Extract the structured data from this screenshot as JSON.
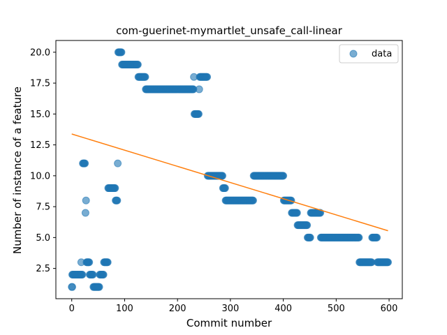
{
  "chart_data": {
    "type": "scatter",
    "title": "com-guerinet-mymartlet_unsafe_call-linear",
    "xlabel": "Commit number",
    "ylabel": "Number of instance of a feature",
    "xlim": [
      -30,
      625
    ],
    "ylim": [
      0.05,
      20.95
    ],
    "xticks": [
      0,
      100,
      200,
      300,
      400,
      500,
      600
    ],
    "yticks": [
      2.5,
      5.0,
      7.5,
      10.0,
      12.5,
      15.0,
      17.5,
      20.0
    ],
    "ytick_labels": [
      "2.5",
      "5.0",
      "7.5",
      "10.0",
      "12.5",
      "15.0",
      "17.5",
      "20.0"
    ],
    "grid": false,
    "legend": {
      "placement": "top-right",
      "entries": [
        "data"
      ]
    },
    "colors": {
      "data": "#1f77b4",
      "fit": "#ff7f0e"
    },
    "series": [
      {
        "name": "data",
        "style": "markers",
        "runs": [
          [
            0,
            1,
            1
          ],
          [
            1,
            18,
            2
          ],
          [
            18,
            18,
            3
          ],
          [
            19,
            20,
            2
          ],
          [
            21,
            25,
            11
          ],
          [
            26,
            26,
            7
          ],
          [
            27,
            27,
            8
          ],
          [
            28,
            33,
            3
          ],
          [
            34,
            40,
            2
          ],
          [
            41,
            52,
            1
          ],
          [
            53,
            60,
            2
          ],
          [
            61,
            68,
            3
          ],
          [
            69,
            82,
            9
          ],
          [
            83,
            86,
            8
          ],
          [
            87,
            87,
            11
          ],
          [
            88,
            94,
            20
          ],
          [
            95,
            125,
            19
          ],
          [
            126,
            139,
            18
          ],
          [
            140,
            230,
            17
          ],
          [
            231,
            231,
            18
          ],
          [
            232,
            240,
            15
          ],
          [
            241,
            241,
            17
          ],
          [
            242,
            256,
            18
          ],
          [
            257,
            285,
            10
          ],
          [
            286,
            290,
            9
          ],
          [
            291,
            343,
            8
          ],
          [
            344,
            400,
            10
          ],
          [
            401,
            415,
            8
          ],
          [
            416,
            426,
            7
          ],
          [
            427,
            445,
            6
          ],
          [
            446,
            451,
            5
          ],
          [
            452,
            470,
            7
          ],
          [
            471,
            543,
            5
          ],
          [
            544,
            567,
            3
          ],
          [
            568,
            577,
            5
          ],
          [
            578,
            598,
            3
          ]
        ]
      },
      {
        "style": "line",
        "x": [
          0,
          598
        ],
        "y": [
          13.38,
          5.55
        ]
      }
    ]
  }
}
